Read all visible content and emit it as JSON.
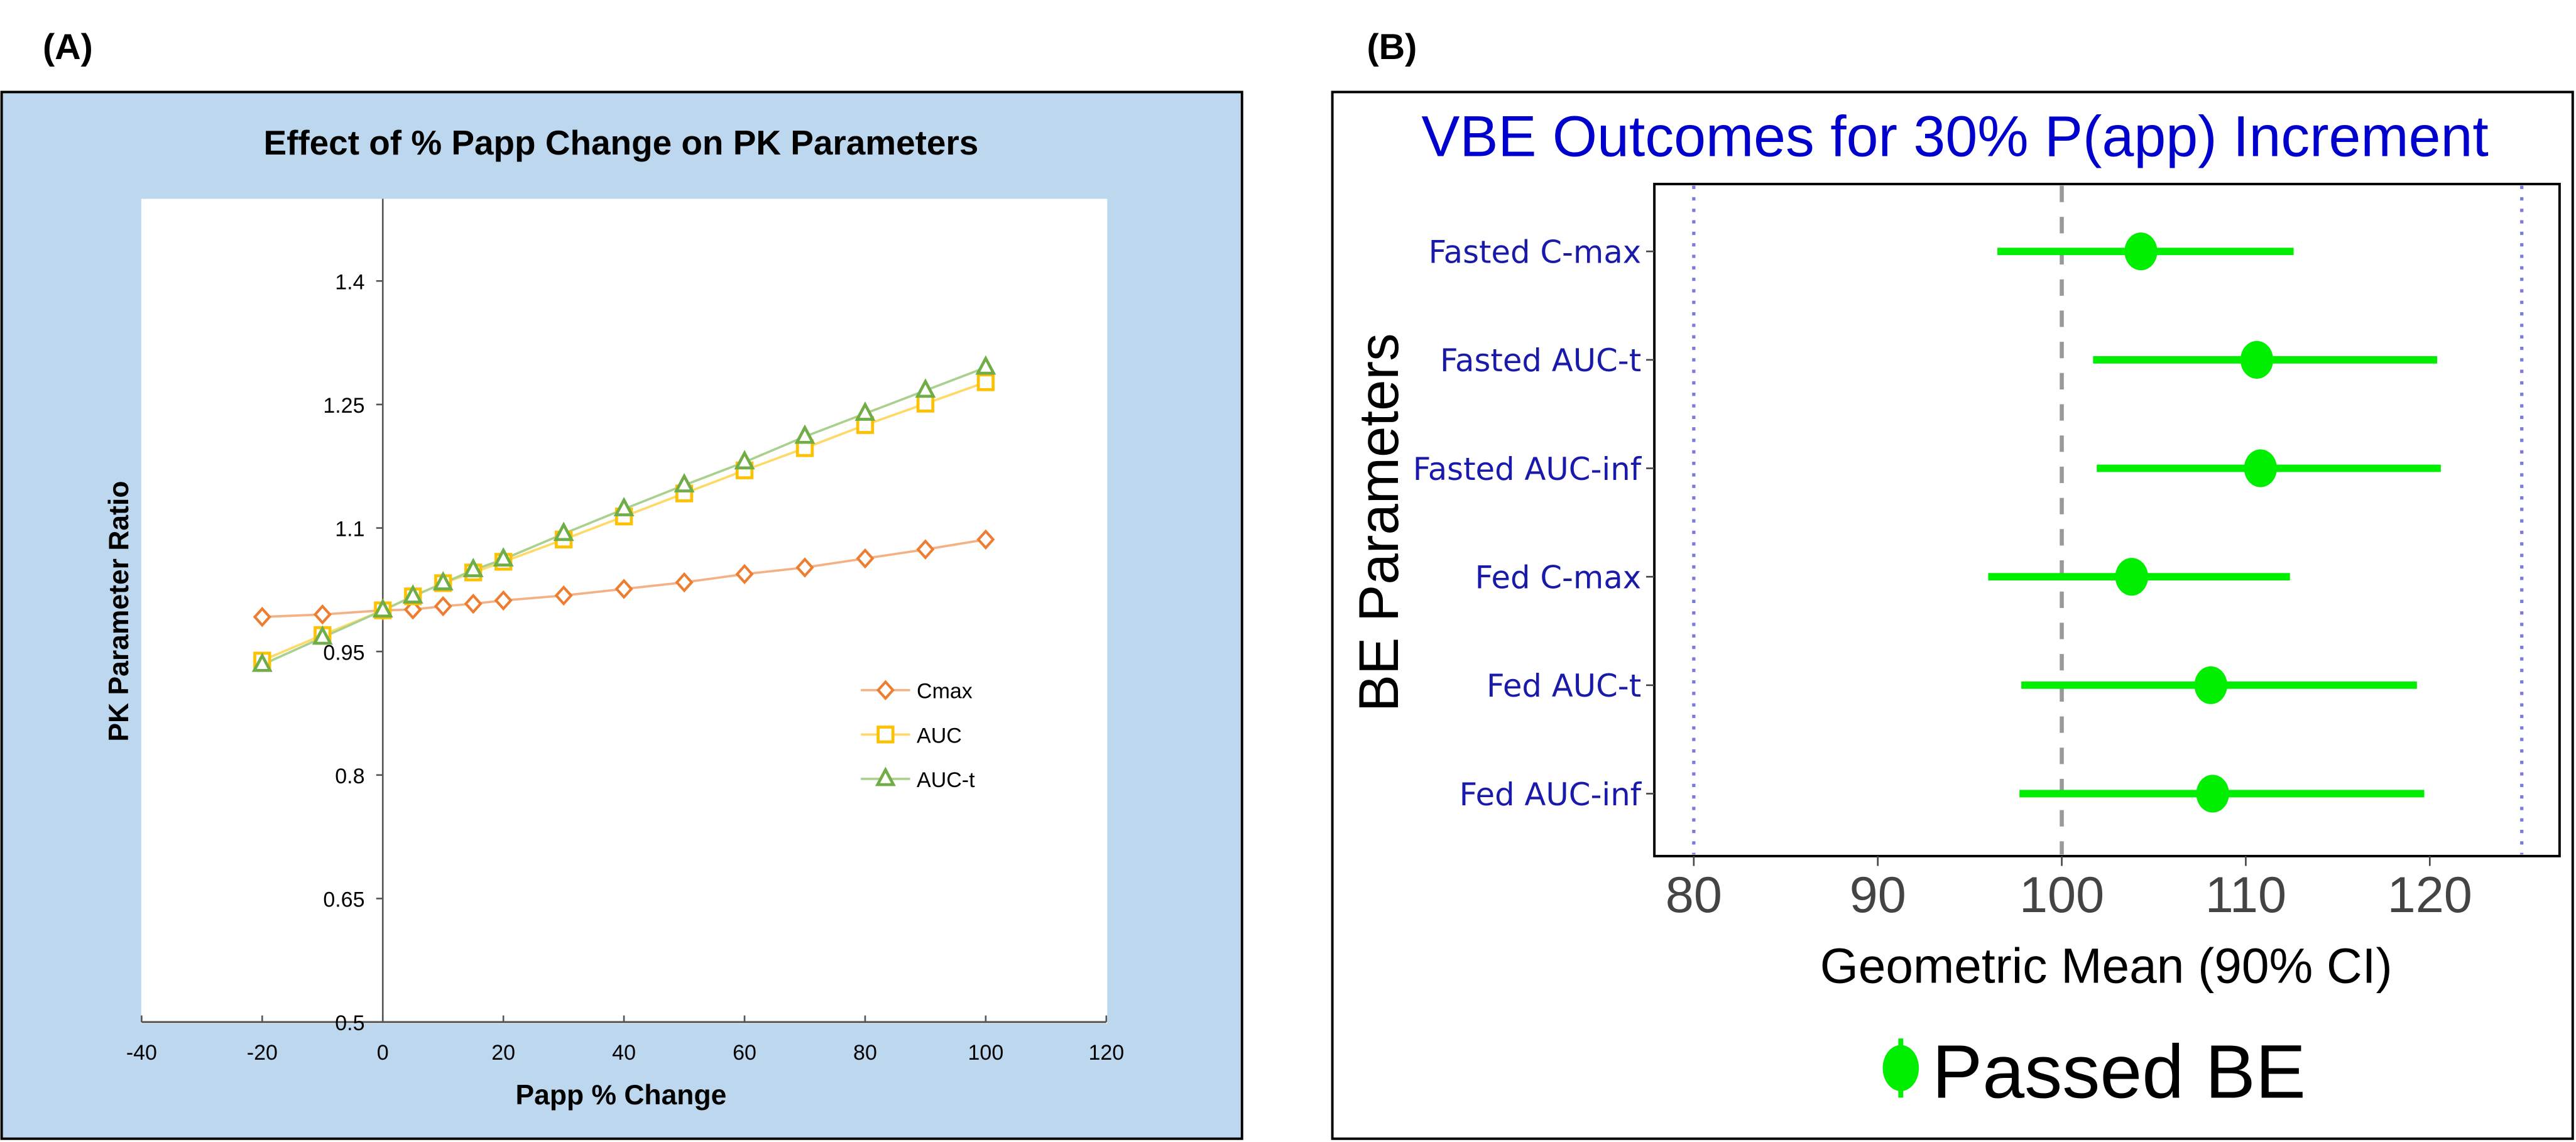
{
  "panels": {
    "a_label": "(A)",
    "b_label": "(B)"
  },
  "chart_data": [
    {
      "type": "line",
      "title": "Effect of % Papp Change on PK Parameters",
      "xlabel": "Papp % Change",
      "ylabel": "PK Parameter Ratio",
      "xlim": [
        -40,
        120
      ],
      "ylim": [
        0.5,
        1.55
      ],
      "xticks": [
        "-40",
        "-20",
        "0",
        "20",
        "40",
        "60",
        "80",
        "100",
        "120"
      ],
      "yticks": [
        "0.5",
        "0.65",
        "0.8",
        "0.95",
        "1.1",
        "1.25",
        "1.4"
      ],
      "legend_position": "right-middle",
      "background_color": "#bdd7ee",
      "x": [
        -20,
        -10,
        0,
        5,
        10,
        15,
        20,
        30,
        40,
        50,
        60,
        70,
        80,
        90,
        100
      ],
      "series": [
        {
          "name": "Cmax",
          "marker": "diamond",
          "color": "#ed7d31",
          "line_color": "#f4b183",
          "values": [
            0.992,
            0.995,
            1.0,
            1.001,
            1.005,
            1.008,
            1.012,
            1.018,
            1.026,
            1.034,
            1.044,
            1.052,
            1.063,
            1.074,
            1.086
          ]
        },
        {
          "name": "AUC",
          "marker": "square",
          "color": "#ffc000",
          "line_color": "#ffd966",
          "values": [
            0.939,
            0.97,
            1.0,
            1.017,
            1.033,
            1.046,
            1.059,
            1.086,
            1.114,
            1.142,
            1.17,
            1.197,
            1.225,
            1.251,
            1.277
          ]
        },
        {
          "name": "AUC-t",
          "marker": "triangle",
          "color": "#70ad47",
          "line_color": "#a9d18e",
          "values": [
            0.934,
            0.967,
            1.0,
            1.017,
            1.033,
            1.049,
            1.062,
            1.093,
            1.123,
            1.152,
            1.18,
            1.211,
            1.239,
            1.267,
            1.295
          ]
        }
      ]
    },
    {
      "type": "forest",
      "title": "VBE Outcomes for 30% P(app) Increment",
      "xlabel": "Geometric Mean (90% CI)",
      "ylabel": "BE Parameters",
      "xlim": [
        77.5,
        127
      ],
      "xticks": [
        "80",
        "90",
        "100",
        "110",
        "120"
      ],
      "reference_line": 100,
      "limit_lines": [
        80,
        125
      ],
      "color": "#00ee00",
      "legend": {
        "label": "Passed BE",
        "position": "bottom"
      },
      "categories": [
        "Fasted C-max",
        "Fasted AUC-t",
        "Fasted AUC-inf",
        "Fed C-max",
        "Fed AUC-t",
        "Fed AUC-inf"
      ],
      "estimates": [
        104.3,
        110.6,
        110.8,
        103.8,
        108.1,
        108.2
      ],
      "lower": [
        96.5,
        101.7,
        101.9,
        96.0,
        97.8,
        97.7
      ],
      "upper": [
        112.6,
        120.4,
        120.6,
        112.4,
        119.3,
        119.7
      ]
    }
  ]
}
